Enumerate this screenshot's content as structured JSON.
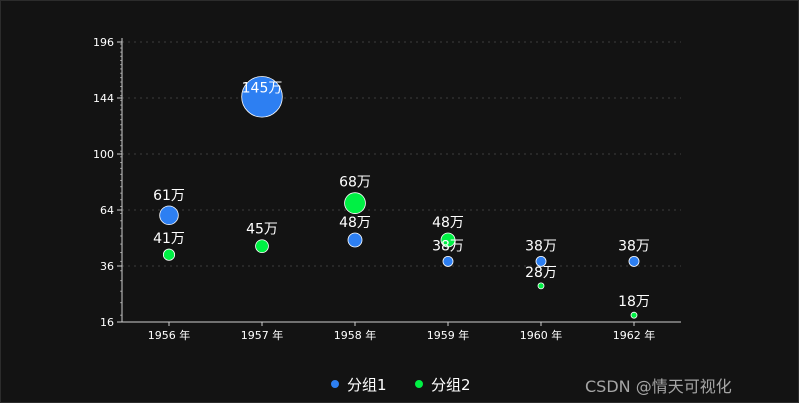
{
  "chart_data": {
    "type": "bubble",
    "title": "",
    "x_axis": {
      "categories": [
        "1956 年",
        "1957 年",
        "1958 年",
        "1959 年",
        "1960 年",
        "1962 年"
      ]
    },
    "y_axis": {
      "scale": "sqrt",
      "ticks": [
        16,
        36,
        64,
        100,
        144,
        196
      ],
      "tick_labels": [
        "16",
        "36",
        "64",
        "100",
        "144",
        "196"
      ],
      "min": 16,
      "max": 196
    },
    "series": [
      {
        "name": "分组1",
        "color": "#2d7ff2",
        "points": [
          {
            "x": "1956 年",
            "y": 61,
            "label": "61万",
            "size": 61
          },
          {
            "x": "1957 年",
            "y": 145,
            "label": "145万",
            "size": 145
          },
          {
            "x": "1958 年",
            "y": 48,
            "label": "48万",
            "size": 48
          },
          {
            "x": "1959 年",
            "y": 38,
            "label": "38万",
            "size": 38
          },
          {
            "x": "1960 年",
            "y": 38,
            "label": "38万",
            "size": 38
          },
          {
            "x": "1962 年",
            "y": 38,
            "label": "38万",
            "size": 38
          }
        ]
      },
      {
        "name": "分组2",
        "color": "#00f044",
        "points": [
          {
            "x": "1956 年",
            "y": 41,
            "label": "41万",
            "size": 41
          },
          {
            "x": "1957 年",
            "y": 45,
            "label": "45万",
            "size": 45
          },
          {
            "x": "1958 年",
            "y": 68,
            "label": "68万",
            "size": 68
          },
          {
            "x": "1959 年",
            "y": 48,
            "label": "48万",
            "size": 48
          },
          {
            "x": "1960 年",
            "y": 28,
            "label": "28万",
            "size": 28
          },
          {
            "x": "1962 年",
            "y": 18,
            "label": "18万",
            "size": 18
          }
        ]
      }
    ],
    "legend": {
      "position": "bottom-center",
      "items": [
        {
          "name": "分组1",
          "color": "#2d7ff2"
        },
        {
          "name": "分组2",
          "color": "#00f044"
        }
      ]
    },
    "grid": "dotted horizontal"
  },
  "watermark": "CSDN @情天可视化"
}
